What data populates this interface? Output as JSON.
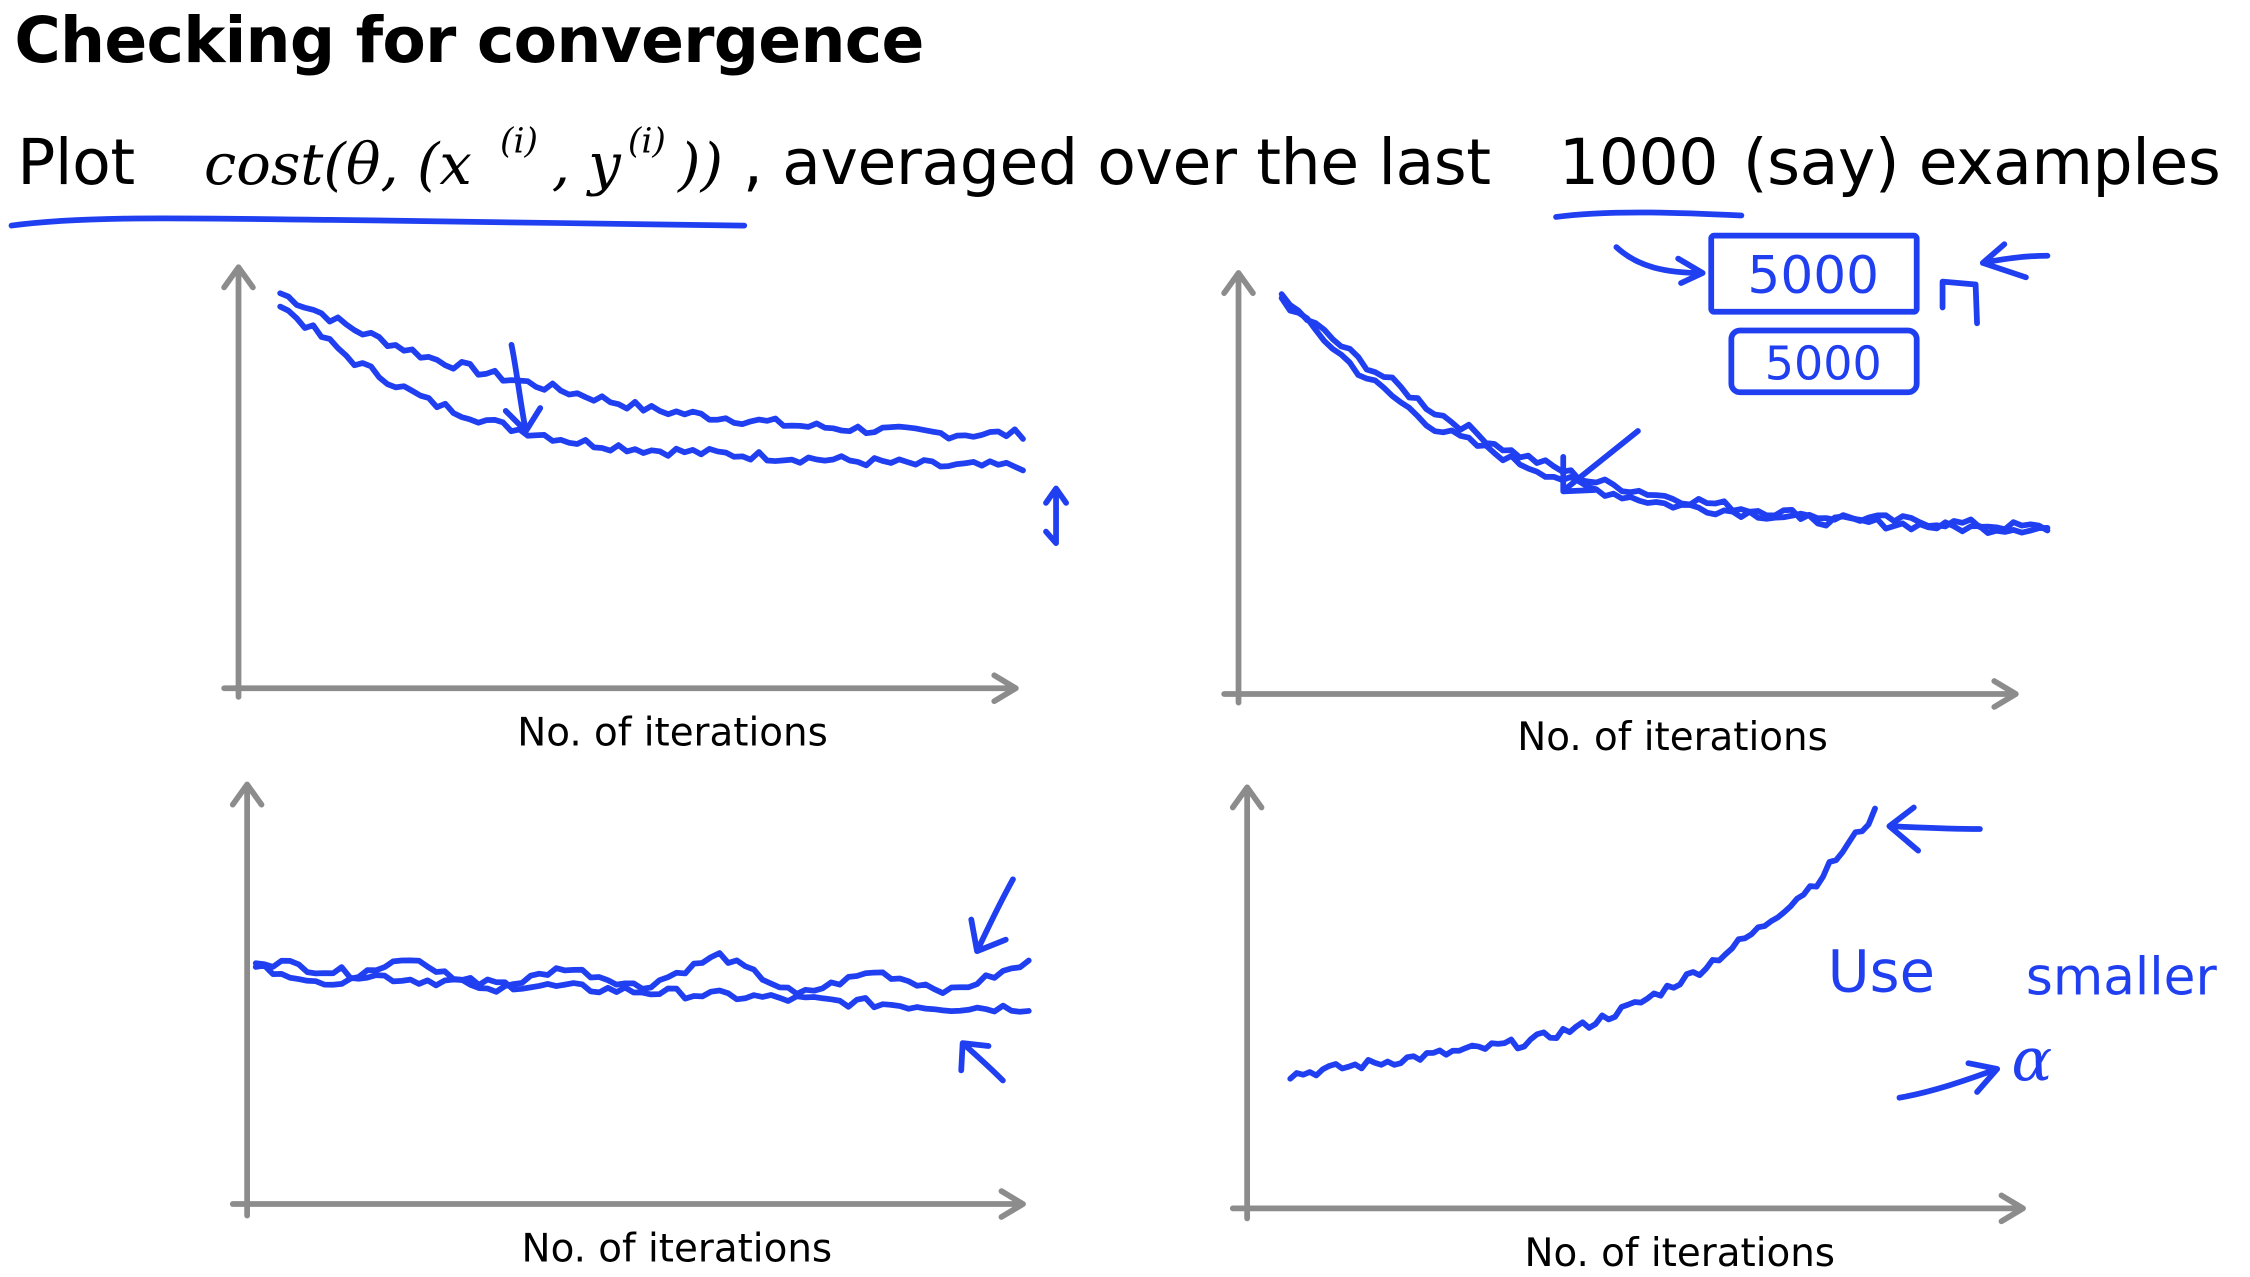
{
  "slide": {
    "title": "Checking for convergence",
    "subtitle": {
      "plot_word": "Plot",
      "formula": {
        "fn": "cost(θ, (x",
        "sup1": "(i)",
        "mid": ", y",
        "sup2": "(i)",
        "end": "))"
      },
      "text_before": ", averaged over the last",
      "number": "1000",
      "text_after": "(say) examples"
    }
  },
  "chart_data": [
    {
      "type": "line",
      "position": "top-left",
      "xlabel": "No. of iterations",
      "ylabel": "",
      "title": "",
      "series": [
        {
          "values": [
            0.95,
            0.86,
            0.79,
            0.74,
            0.7,
            0.66,
            0.64,
            0.62,
            0.61,
            0.6,
            0.6
          ]
        },
        {
          "values": [
            0.92,
            0.78,
            0.68,
            0.62,
            0.58,
            0.56,
            0.55,
            0.54,
            0.53,
            0.52,
            0.52
          ]
        }
      ]
    },
    {
      "type": "line",
      "position": "top-right",
      "xlabel": "No. of iterations",
      "ylabel": "",
      "title": "",
      "series": [
        {
          "values": [
            0.95,
            0.8,
            0.67,
            0.57,
            0.5,
            0.46,
            0.43,
            0.41,
            0.4,
            0.39,
            0.38
          ]
        },
        {
          "values": [
            0.95,
            0.77,
            0.63,
            0.55,
            0.48,
            0.44,
            0.42,
            0.4,
            0.39,
            0.38,
            0.38
          ]
        }
      ]
    },
    {
      "type": "line",
      "position": "bottom-left",
      "xlabel": "No. of iterations",
      "ylabel": "",
      "title": "",
      "series": [
        {
          "values": [
            0.56,
            0.52,
            0.58,
            0.5,
            0.56,
            0.51,
            0.59,
            0.49,
            0.55,
            0.5,
            0.57
          ]
        },
        {
          "values": [
            0.58,
            0.55,
            0.53,
            0.52,
            0.51,
            0.5,
            0.49,
            0.48,
            0.47,
            0.46,
            0.46
          ]
        }
      ]
    },
    {
      "type": "line",
      "position": "bottom-right",
      "xlabel": "No. of iterations",
      "ylabel": "",
      "title": "",
      "series": [
        {
          "values": [
            0.3,
            0.32,
            0.34,
            0.36,
            0.38,
            0.42,
            0.48,
            0.56,
            0.66,
            0.78,
            0.95
          ]
        }
      ]
    }
  ],
  "annotations": {
    "box_top": "5000",
    "box_bottom": "5000",
    "note_use": "Use",
    "note_smaller": "smaller",
    "note_alpha": "α"
  },
  "colors": {
    "ink": "#1f3ff0",
    "axis": "#8c8c8c",
    "text": "#000000"
  }
}
